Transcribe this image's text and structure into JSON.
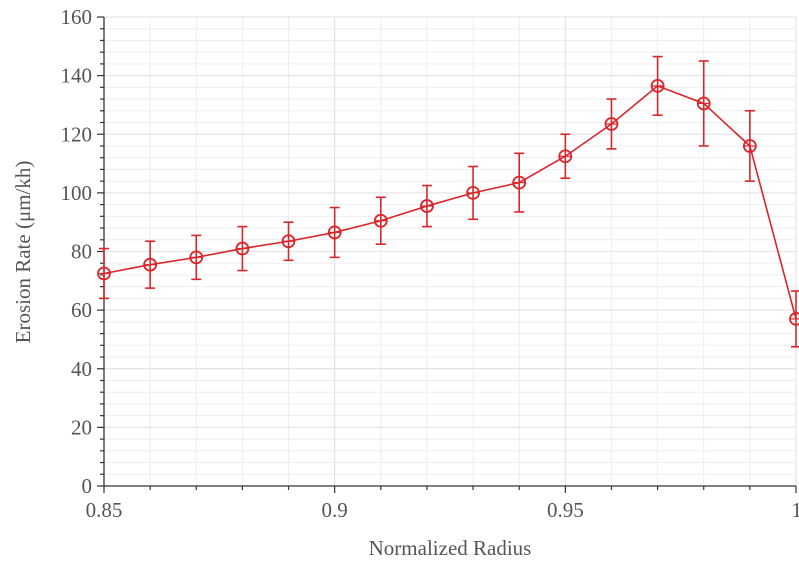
{
  "chart_data": {
    "type": "line",
    "xlabel": "Normalized Radius",
    "ylabel": "Erosion Rate (μm/kh)",
    "xlim": [
      0.85,
      1.0
    ],
    "ylim": [
      0,
      160
    ],
    "x_ticks": [
      0.85,
      0.9,
      0.95,
      1.0
    ],
    "x_tick_labels": [
      "0.85",
      "0.9",
      "0.95",
      "1"
    ],
    "y_ticks": [
      0,
      20,
      40,
      60,
      80,
      100,
      120,
      140,
      160
    ],
    "y_tick_labels": [
      "0",
      "20",
      "40",
      "60",
      "80",
      "100",
      "120",
      "140",
      "160"
    ],
    "grid": true,
    "series": [
      {
        "marker": "open-circle",
        "color": "#d9262b",
        "x": [
          0.85,
          0.86,
          0.87,
          0.88,
          0.89,
          0.9,
          0.91,
          0.92,
          0.93,
          0.94,
          0.95,
          0.96,
          0.97,
          0.98,
          0.99,
          1.0
        ],
        "y": [
          72.5,
          75.5,
          78,
          81,
          83.5,
          86.5,
          90.5,
          95.5,
          100,
          103.5,
          112.5,
          123.5,
          136.5,
          130.5,
          116,
          57
        ],
        "y_err_upper": [
          8.5,
          8,
          7.5,
          7.5,
          6.5,
          8.5,
          8,
          7,
          9,
          10,
          7.5,
          8.5,
          10,
          14.5,
          12,
          9.5
        ],
        "y_err_lower": [
          8.5,
          8,
          7.5,
          7.5,
          6.5,
          8.5,
          8,
          7,
          9,
          10,
          7.5,
          8.5,
          10,
          14.5,
          12,
          9.5
        ]
      }
    ]
  }
}
